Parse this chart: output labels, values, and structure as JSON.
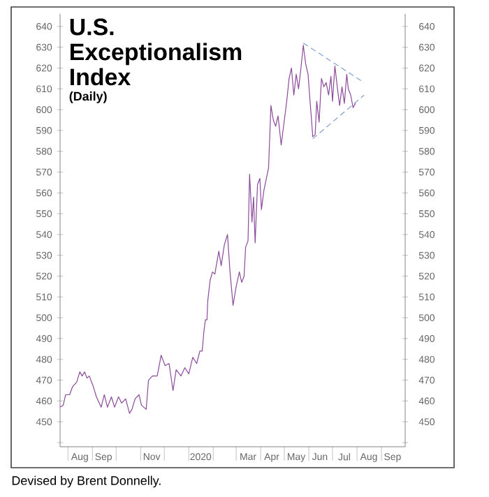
{
  "chart_data": {
    "type": "line",
    "title": "U.S. Exceptionalism Index",
    "subtitle": "(Daily)",
    "annotations": [
      "Devised by Brent Donnelly."
    ],
    "xlim": [
      "2019-07-22",
      "2020-10-01"
    ],
    "xticks": [
      {
        "value": "2019-08-16",
        "label": "Aug"
      },
      {
        "value": "2019-09-15",
        "label": "Sep"
      },
      {
        "value": "2019-11-15",
        "label": "Nov"
      },
      {
        "value": "2020-01-16",
        "label": "2020"
      },
      {
        "value": "2020-03-16",
        "label": "Mar"
      },
      {
        "value": "2020-04-15",
        "label": "Apr"
      },
      {
        "value": "2020-05-16",
        "label": "May"
      },
      {
        "value": "2020-06-15",
        "label": "Jun"
      },
      {
        "value": "2020-07-16",
        "label": "Jul"
      },
      {
        "value": "2020-08-16",
        "label": "Aug"
      },
      {
        "value": "2020-09-15",
        "label": "Sep"
      },
      {
        "value": "2019-08-01",
        "label": null
      },
      {
        "value": "2019-09-01",
        "label": null
      },
      {
        "value": "2019-10-01",
        "label": null
      },
      {
        "value": "2019-11-01",
        "label": null
      },
      {
        "value": "2019-12-01",
        "label": null
      },
      {
        "value": "2020-01-01",
        "label": null
      },
      {
        "value": "2020-02-01",
        "label": null
      },
      {
        "value": "2020-03-01",
        "label": null
      },
      {
        "value": "2020-04-01",
        "label": null
      },
      {
        "value": "2020-05-01",
        "label": null
      },
      {
        "value": "2020-06-01",
        "label": null
      },
      {
        "value": "2020-07-01",
        "label": null
      },
      {
        "value": "2020-08-01",
        "label": null
      },
      {
        "value": "2020-09-01",
        "label": null
      }
    ],
    "ylim": [
      438,
      646
    ],
    "yticks": [
      {
        "value": 440,
        "label": null
      },
      450,
      460,
      470,
      480,
      490,
      500,
      510,
      520,
      530,
      540,
      550,
      560,
      570,
      580,
      590,
      600,
      610,
      620,
      630,
      640
    ],
    "y2lim": [
      438,
      646
    ],
    "y2ticks": [
      {
        "value": 440,
        "label": null
      },
      450,
      460,
      470,
      480,
      490,
      500,
      510,
      520,
      530,
      540,
      550,
      560,
      570,
      580,
      590,
      600,
      610,
      620,
      630,
      640
    ],
    "series": [
      {
        "color": "#8b4a9c",
        "x": [
          "2019-07-22",
          "2019-07-26",
          "2019-07-29",
          "2019-08-03",
          "2019-08-07",
          "2019-08-12",
          "2019-08-16",
          "2019-08-19",
          "2019-08-22",
          "2019-08-25",
          "2019-08-28",
          "2019-09-02",
          "2019-09-06",
          "2019-09-12",
          "2019-09-16",
          "2019-09-20",
          "2019-09-25",
          "2019-09-29",
          "2019-10-04",
          "2019-10-08",
          "2019-10-13",
          "2019-10-18",
          "2019-10-21",
          "2019-10-25",
          "2019-10-30",
          "2019-11-02",
          "2019-11-08",
          "2019-11-11",
          "2019-11-16",
          "2019-11-22",
          "2019-11-27",
          "2019-12-02",
          "2019-12-07",
          "2019-12-12",
          "2019-12-16",
          "2019-12-22",
          "2019-12-27",
          "2020-01-01",
          "2020-01-06",
          "2020-01-11",
          "2020-01-15",
          "2020-01-18",
          "2020-01-20",
          "2020-01-22",
          "2020-01-24",
          "2020-01-25",
          "2020-01-28",
          "2020-01-31",
          "2020-02-03",
          "2020-02-08",
          "2020-02-11",
          "2020-02-15",
          "2020-02-19",
          "2020-02-22",
          "2020-02-26",
          "2020-03-01",
          "2020-03-05",
          "2020-03-08",
          "2020-03-11",
          "2020-03-13",
          "2020-03-16",
          "2020-03-18",
          "2020-03-21",
          "2020-03-23",
          "2020-03-25",
          "2020-03-28",
          "2020-03-31",
          "2020-04-02",
          "2020-04-05",
          "2020-04-11",
          "2020-04-14",
          "2020-04-17",
          "2020-04-20",
          "2020-04-23",
          "2020-04-27",
          "2020-05-01",
          "2020-05-04",
          "2020-05-07",
          "2020-05-10",
          "2020-05-13",
          "2020-05-16",
          "2020-05-19",
          "2020-05-22",
          "2020-05-25",
          "2020-05-28",
          "2020-05-31",
          "2020-06-03",
          "2020-06-06",
          "2020-06-09",
          "2020-06-11",
          "2020-06-14",
          "2020-06-17",
          "2020-06-20",
          "2020-06-23",
          "2020-06-26",
          "2020-06-29",
          "2020-07-01",
          "2020-07-04",
          "2020-07-07",
          "2020-07-10",
          "2020-07-13",
          "2020-07-16",
          "2020-07-19",
          "2020-07-21",
          "2020-07-24",
          "2020-07-27",
          "2020-07-30"
        ],
        "values": [
          457,
          458,
          463,
          463,
          467,
          469,
          474,
          472,
          474,
          471,
          472,
          467,
          462,
          457,
          463,
          457,
          462,
          457,
          462,
          459,
          461,
          454,
          456,
          461,
          463,
          458,
          456,
          470,
          472,
          472,
          482,
          477,
          478,
          465,
          475,
          472,
          476,
          473,
          481,
          478,
          484,
          484,
          493,
          499,
          499,
          508,
          518,
          522,
          521,
          532,
          525,
          535,
          540,
          523,
          506,
          515,
          522,
          517,
          520,
          534,
          537,
          569,
          546,
          558,
          536,
          564,
          567,
          552,
          561,
          572,
          602,
          595,
          592,
          597,
          583,
          595,
          604,
          615,
          620,
          607,
          617,
          610,
          620,
          631,
          622,
          617,
          602,
          587,
          588,
          604,
          594,
          615,
          611,
          613,
          607,
          616,
          604,
          621,
          611,
          602,
          611,
          603,
          617,
          610,
          607,
          601,
          603
        ]
      },
      {
        "type": "line",
        "line_style": "dashed",
        "color": "#7f9fd0",
        "x": [
          "2020-05-25",
          "2020-08-10"
        ],
        "values": [
          632,
          613
        ]
      },
      {
        "type": "line",
        "line_style": "dashed",
        "color": "#7f9fd0",
        "x": [
          "2020-06-06",
          "2020-08-10"
        ],
        "values": [
          586,
          607
        ]
      }
    ]
  }
}
